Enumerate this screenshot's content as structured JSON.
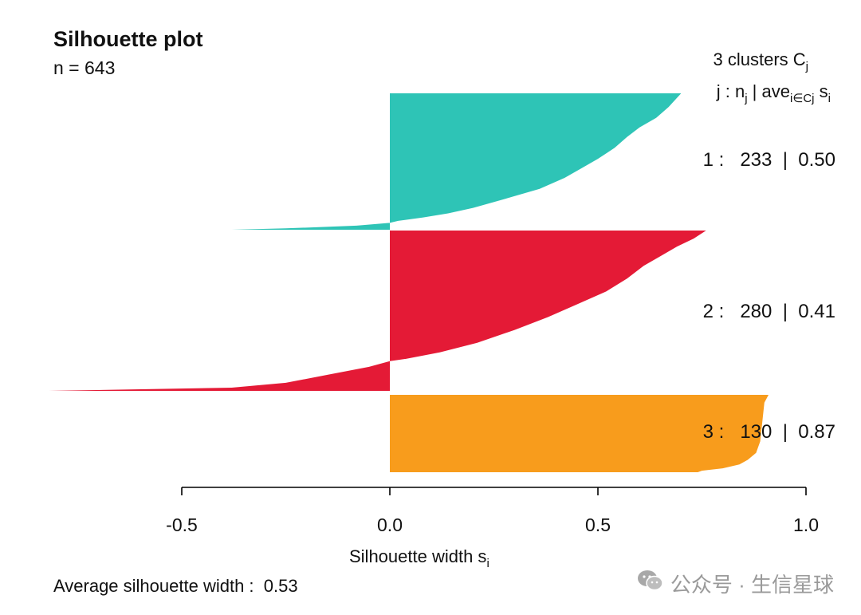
{
  "chart_data": {
    "type": "bar",
    "orientation": "horizontal",
    "title": "Silhouette plot",
    "subtitle": "n = 643",
    "header_line1_main": "3  clusters  C",
    "header_line1_sub": "j",
    "header_line2_a": "j :  n",
    "header_line2_b": "j",
    "header_line2_c": " | ave",
    "header_line2_d": "i∈Cj",
    "header_line2_e": "  s",
    "header_line2_f": "i",
    "xlabel_main": "Silhouette width s",
    "xlabel_sub": "i",
    "xlim": [
      -0.5,
      1.0
    ],
    "xticks": [
      "-0.5",
      "0.0",
      "0.5",
      "1.0"
    ],
    "footer": "Average silhouette width :  0.53",
    "clusters": [
      {
        "id": 1,
        "n": 233,
        "avg": 0.5,
        "color": "#2EC4B6",
        "label": "1 :   233  |  0.50",
        "profile": [
          [
            0,
            0.7
          ],
          [
            0.05,
            0.685
          ],
          [
            0.1,
            0.67
          ],
          [
            0.18,
            0.64
          ],
          [
            0.25,
            0.6
          ],
          [
            0.32,
            0.57
          ],
          [
            0.4,
            0.54
          ],
          [
            0.48,
            0.5
          ],
          [
            0.55,
            0.46
          ],
          [
            0.62,
            0.42
          ],
          [
            0.7,
            0.36
          ],
          [
            0.78,
            0.27
          ],
          [
            0.84,
            0.2
          ],
          [
            0.88,
            0.14
          ],
          [
            0.91,
            0.08
          ],
          [
            0.935,
            0.02
          ],
          [
            0.95,
            0.0
          ],
          [
            0.97,
            -0.08
          ],
          [
            0.99,
            -0.25
          ],
          [
            1.0,
            -0.38
          ]
        ]
      },
      {
        "id": 2,
        "n": 280,
        "avg": 0.41,
        "color": "#E41A36",
        "label": "2 :   280  |  0.41",
        "profile": [
          [
            0,
            0.76
          ],
          [
            0.05,
            0.73
          ],
          [
            0.1,
            0.69
          ],
          [
            0.16,
            0.65
          ],
          [
            0.22,
            0.61
          ],
          [
            0.3,
            0.57
          ],
          [
            0.38,
            0.52
          ],
          [
            0.46,
            0.45
          ],
          [
            0.54,
            0.38
          ],
          [
            0.62,
            0.3
          ],
          [
            0.7,
            0.21
          ],
          [
            0.76,
            0.12
          ],
          [
            0.8,
            0.04
          ],
          [
            0.815,
            0.0
          ],
          [
            0.85,
            -0.05
          ],
          [
            0.9,
            -0.15
          ],
          [
            0.95,
            -0.25
          ],
          [
            0.98,
            -0.38
          ],
          [
            1.0,
            -0.82
          ]
        ]
      },
      {
        "id": 3,
        "n": 130,
        "avg": 0.87,
        "color": "#F89C1C",
        "label": "3 :   130  |  0.87",
        "profile": [
          [
            0,
            0.91
          ],
          [
            0.1,
            0.9
          ],
          [
            0.35,
            0.895
          ],
          [
            0.6,
            0.89
          ],
          [
            0.75,
            0.88
          ],
          [
            0.84,
            0.86
          ],
          [
            0.9,
            0.84
          ],
          [
            0.95,
            0.8
          ],
          [
            0.98,
            0.75
          ],
          [
            1.0,
            0.74
          ]
        ]
      }
    ]
  },
  "watermark": {
    "icon": "wechat-icon",
    "text": "公众号 · 生信星球"
  }
}
